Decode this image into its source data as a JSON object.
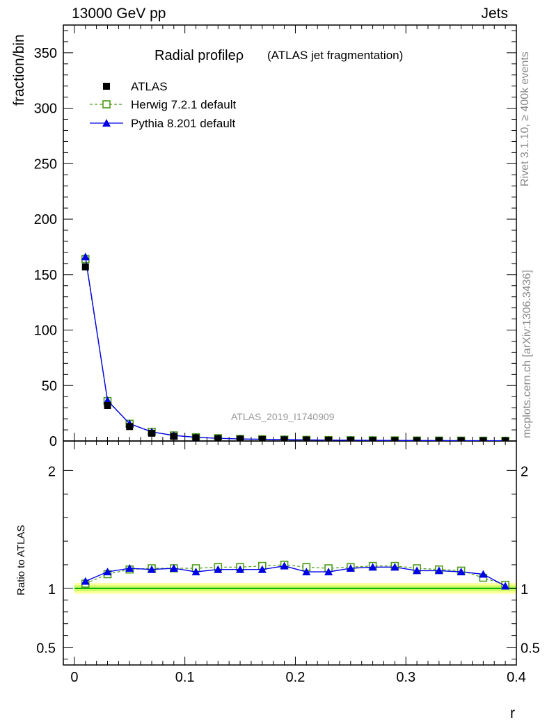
{
  "header": {
    "left": "13000 GeV pp",
    "right": "Jets"
  },
  "side_labels": {
    "rivet": "Rivet 3.1.10, ≥ 400k events",
    "mcplots": "mcplots.cern.ch [arXiv:1306.3436]"
  },
  "chart_data": [
    {
      "type": "scatter",
      "title": "Radial profileρ",
      "subtitle": "(ATLAS jet fragmentation)",
      "watermark": "ATLAS_2019_I1740909",
      "ylabel": "fraction/bin",
      "xlim": [
        -0.01,
        0.4
      ],
      "ylim": [
        0,
        375
      ],
      "yticks": [
        0,
        50,
        100,
        150,
        200,
        250,
        300,
        350
      ],
      "x": [
        0.01,
        0.03,
        0.05,
        0.07,
        0.09,
        0.11,
        0.13,
        0.15,
        0.17,
        0.19,
        0.21,
        0.23,
        0.25,
        0.27,
        0.29,
        0.31,
        0.33,
        0.35,
        0.37,
        0.39
      ],
      "series": [
        {
          "name": "ATLAS",
          "color": "#000000",
          "marker": "square",
          "values": [
            157,
            32,
            13,
            7,
            4.2,
            2.9,
            2.1,
            1.6,
            1.3,
            1.05,
            0.85,
            0.7,
            0.6,
            0.5,
            0.43,
            0.36,
            0.31,
            0.27,
            0.23,
            0.2
          ]
        },
        {
          "name": "Herwig 7.2.1 default",
          "color": "#4a9a17",
          "marker": "open-square",
          "dash": true,
          "values": [
            164,
            36,
            15.5,
            8.3,
            5,
            3.4,
            2.5,
            1.9,
            1.55,
            1.25,
            1.0,
            0.82,
            0.7,
            0.59,
            0.51,
            0.42,
            0.36,
            0.31,
            0.25,
            0.21
          ]
        },
        {
          "name": "Pythia 8.201 default",
          "color": "#0000e6",
          "marker": "triangle",
          "values": [
            166,
            36.5,
            15.6,
            8.2,
            5,
            3.3,
            2.4,
            1.85,
            1.5,
            1.25,
            0.97,
            0.81,
            0.7,
            0.59,
            0.51,
            0.41,
            0.36,
            0.3,
            0.25,
            0.2
          ]
        }
      ],
      "legend_position": "top-left"
    },
    {
      "type": "line",
      "ylabel": "Ratio to ATLAS",
      "xlabel": "r",
      "xlim": [
        -0.01,
        0.4
      ],
      "ylim": [
        0.35,
        2.25
      ],
      "yticks": [
        0.5,
        1,
        2
      ],
      "xticks": [
        0,
        0.1,
        0.2,
        0.3,
        0.4
      ],
      "x": [
        0.01,
        0.03,
        0.05,
        0.07,
        0.09,
        0.11,
        0.13,
        0.15,
        0.17,
        0.19,
        0.21,
        0.23,
        0.25,
        0.27,
        0.29,
        0.31,
        0.33,
        0.35,
        0.37,
        0.39
      ],
      "band": {
        "inner": 0.025,
        "outer": 0.045,
        "inner_color": "#ccff66",
        "outer_color": "#ffff99",
        "line_color": "#00aa00"
      },
      "series": [
        {
          "name": "Herwig 7.2.1 default",
          "color": "#4a9a17",
          "marker": "open-square",
          "dash": true,
          "values": [
            1.04,
            1.12,
            1.16,
            1.17,
            1.17,
            1.17,
            1.18,
            1.18,
            1.19,
            1.2,
            1.18,
            1.17,
            1.18,
            1.19,
            1.19,
            1.17,
            1.16,
            1.15,
            1.09,
            1.03
          ]
        },
        {
          "name": "Pythia 8.201 default",
          "color": "#0000e6",
          "marker": "triangle",
          "values": [
            1.06,
            1.14,
            1.17,
            1.16,
            1.17,
            1.14,
            1.16,
            1.16,
            1.16,
            1.19,
            1.14,
            1.14,
            1.17,
            1.18,
            1.18,
            1.15,
            1.15,
            1.14,
            1.12,
            1.02
          ]
        }
      ]
    }
  ]
}
